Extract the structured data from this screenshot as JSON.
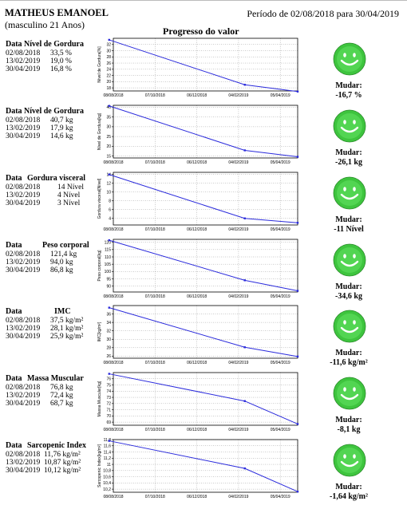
{
  "header": {
    "name": "MATHEUS EMANOEL",
    "subtitle": "(masculino 21 Anos)",
    "period": "Período de 02/08/2018 para 30/04/2019",
    "title": "Progresso do valor"
  },
  "change_label": "Mudar:",
  "sections": [
    {
      "title_left": "Data",
      "title_right": "Nível de Gordura",
      "rows": [
        {
          "date": "02/08/2018",
          "value": "33,5 %"
        },
        {
          "date": "13/02/2019",
          "value": "19,0 %"
        },
        {
          "date": "30/04/2019",
          "value": "16,8 %"
        }
      ],
      "change": "-16,7 %"
    },
    {
      "title_left": "Data",
      "title_right": "Nível de Gordura",
      "rows": [
        {
          "date": "02/08/2018",
          "value": "40,7 kg"
        },
        {
          "date": "13/02/2019",
          "value": "17,9 kg"
        },
        {
          "date": "30/04/2019",
          "value": "14,6 kg"
        }
      ],
      "change": "-26,1 kg"
    },
    {
      "title_left": "Data",
      "title_right": "Gordura visceral",
      "rows": [
        {
          "date": "02/08/2018",
          "value": "14 Nível"
        },
        {
          "date": "13/02/2019",
          "value": "4 Nível"
        },
        {
          "date": "30/04/2019",
          "value": "3 Nível"
        }
      ],
      "change": "-11 Nível"
    },
    {
      "title_left": "Data",
      "title_right": "Peso corporal",
      "rows": [
        {
          "date": "02/08/2018",
          "value": "121,4 kg"
        },
        {
          "date": "13/02/2019",
          "value": "94,0 kg"
        },
        {
          "date": "30/04/2019",
          "value": "86,8 kg"
        }
      ],
      "change": "-34,6 kg"
    },
    {
      "title_left": "Data",
      "title_right": "IMC",
      "rows": [
        {
          "date": "02/08/2018",
          "value": "37,5 kg/m²"
        },
        {
          "date": "13/02/2019",
          "value": "28,1 kg/m²"
        },
        {
          "date": "30/04/2019",
          "value": "25,9 kg/m²"
        }
      ],
      "change": "-11,6 kg/m²"
    },
    {
      "title_left": "Data",
      "title_right": "Massa Muscular",
      "rows": [
        {
          "date": "02/08/2018",
          "value": "76,8 kg"
        },
        {
          "date": "13/02/2019",
          "value": "72,4 kg"
        },
        {
          "date": "30/04/2019",
          "value": "68,7 kg"
        }
      ],
      "change": "-8,1 kg"
    },
    {
      "title_left": "Data",
      "title_right": "Sarcopenic Index",
      "rows": [
        {
          "date": "02/08/2018",
          "value": "11,76 kg/m²"
        },
        {
          "date": "13/02/2019",
          "value": "10,87 kg/m²"
        },
        {
          "date": "30/04/2019",
          "value": "10,12 kg/m²"
        }
      ],
      "change": "-1,64 kg/m²"
    }
  ],
  "chart_data": [
    {
      "type": "line",
      "ylabel": "Nível de Gordura[%]",
      "x": [
        "02/08/2018",
        "13/02/2019",
        "30/04/2019"
      ],
      "xticks": [
        "08/08/2018",
        "07/10/2018",
        "06/12/2018",
        "04/02/2019",
        "05/04/2019"
      ],
      "yticks": [
        "18",
        "20",
        "22",
        "24",
        "26",
        "28",
        "30",
        "32"
      ],
      "ylim": [
        17,
        34
      ],
      "values": [
        33.5,
        19.0,
        16.8
      ],
      "line_color": "#2b2bdc"
    },
    {
      "type": "line",
      "ylabel": "Nível de Gordura[kg]",
      "x": [
        "02/08/2018",
        "13/02/2019",
        "30/04/2019"
      ],
      "xticks": [
        "08/08/2018",
        "07/10/2018",
        "06/12/2018",
        "04/02/2019",
        "05/04/2019"
      ],
      "yticks": [
        "15",
        "20",
        "25",
        "30",
        "35",
        "40"
      ],
      "ylim": [
        14,
        41
      ],
      "values": [
        40.7,
        17.9,
        14.6
      ],
      "line_color": "#2b2bdc"
    },
    {
      "type": "line",
      "ylabel": "Gordura visceral[Nível]",
      "x": [
        "02/08/2018",
        "13/02/2019",
        "30/04/2019"
      ],
      "xticks": [
        "08/08/2018",
        "07/10/2018",
        "06/12/2018",
        "04/02/2019",
        "05/04/2019"
      ],
      "yticks": [
        "4",
        "6",
        "8",
        "10",
        "12",
        "14"
      ],
      "ylim": [
        2.5,
        14.5
      ],
      "values": [
        14,
        4,
        3
      ],
      "line_color": "#2b2bdc"
    },
    {
      "type": "line",
      "ylabel": "Peso corporal[kg]",
      "x": [
        "02/08/2018",
        "13/02/2019",
        "30/04/2019"
      ],
      "xticks": [
        "08/08/2018",
        "07/10/2018",
        "06/12/2018",
        "04/02/2019",
        "05/04/2019"
      ],
      "yticks": [
        "90",
        "95",
        "100",
        "105",
        "110",
        "115",
        "120"
      ],
      "ylim": [
        86,
        122
      ],
      "values": [
        121.4,
        94.0,
        86.8
      ],
      "line_color": "#2b2bdc"
    },
    {
      "type": "line",
      "ylabel": "IMC[kg/m²]",
      "x": [
        "02/08/2018",
        "13/02/2019",
        "30/04/2019"
      ],
      "xticks": [
        "08/08/2018",
        "07/10/2018",
        "06/12/2018",
        "04/02/2019",
        "05/04/2019"
      ],
      "yticks": [
        "26",
        "28",
        "30",
        "32",
        "34",
        "36"
      ],
      "ylim": [
        25.5,
        38
      ],
      "values": [
        37.5,
        28.1,
        25.9
      ],
      "line_color": "#2b2bdc"
    },
    {
      "type": "line",
      "ylabel": "Massa Muscular[kg]",
      "x": [
        "02/08/2018",
        "13/02/2019",
        "30/04/2019"
      ],
      "xticks": [
        "08/08/2018",
        "07/10/2018",
        "06/12/2018",
        "04/02/2019",
        "05/04/2019"
      ],
      "yticks": [
        "69",
        "70",
        "71",
        "72",
        "73",
        "74",
        "75",
        "76"
      ],
      "ylim": [
        68.5,
        77
      ],
      "values": [
        76.8,
        72.4,
        68.7
      ],
      "line_color": "#2b2bdc"
    },
    {
      "type": "line",
      "ylabel": "Sarcopenic Index[kg/m²]",
      "x": [
        "02/08/2018",
        "13/02/2019",
        "30/04/2019"
      ],
      "xticks": [
        "08/08/2018",
        "07/10/2018",
        "06/12/2018",
        "04/02/2019",
        "05/04/2019"
      ],
      "yticks": [
        "10,2",
        "10,4",
        "10,6",
        "10,8",
        "11",
        "11,2",
        "11,4",
        "11,6",
        "11,8"
      ],
      "ylim": [
        10.1,
        11.8
      ],
      "values": [
        11.76,
        10.87,
        10.12
      ],
      "line_color": "#2b2bdc"
    }
  ]
}
